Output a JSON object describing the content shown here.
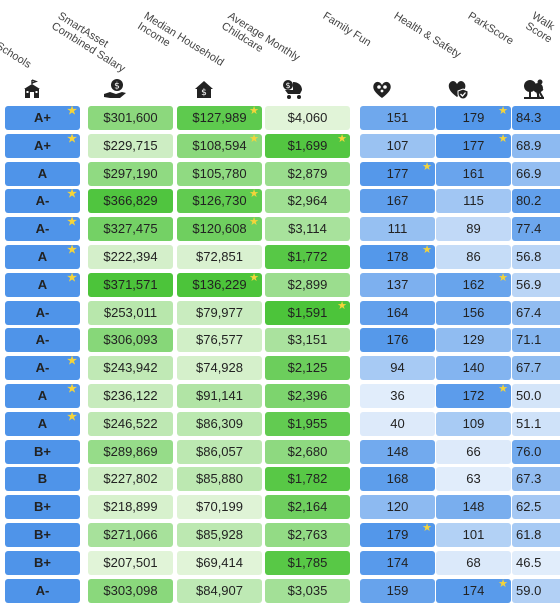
{
  "chart_data": {
    "type": "table",
    "columns": [
      {
        "key": "schools",
        "label": [
          "Schools"
        ],
        "icon": "school-icon"
      },
      {
        "key": "salary",
        "label": [
          "SmartAsset",
          "Combined Salary"
        ],
        "icon": "money-hand-icon"
      },
      {
        "key": "income",
        "label": [
          "Median Household",
          "Income"
        ],
        "icon": "house-dollar-icon"
      },
      {
        "key": "childcare",
        "label": [
          "Average Monthly",
          "Childcare"
        ],
        "icon": "stroller-dollar-icon"
      },
      {
        "key": "fun",
        "label": [
          "Family Fun"
        ],
        "icon": "family-icon"
      },
      {
        "key": "health",
        "label": [
          "Health & Safety"
        ],
        "icon": "heart-shield-icon"
      },
      {
        "key": "parks",
        "label": [
          "ParkScore"
        ],
        "icon": "park-icon"
      },
      {
        "key": "walk",
        "label": [
          "Walk",
          "Score"
        ],
        "icon": "walk-icon"
      }
    ],
    "rows": [
      {
        "schools": "A+",
        "salary": "$301,600",
        "income": "$127,989",
        "childcare": "$4,060",
        "fun": "151",
        "health": "179",
        "parks": "84.3"
      },
      {
        "schools": "A+",
        "salary": "$229,715",
        "income": "$108,594",
        "childcare": "$1,699",
        "fun": "107",
        "health": "177",
        "parks": "68.9"
      },
      {
        "schools": "A",
        "salary": "$297,190",
        "income": "$105,780",
        "childcare": "$2,879",
        "fun": "177",
        "health": "161",
        "parks": "66.9"
      },
      {
        "schools": "A-",
        "salary": "$366,829",
        "income": "$126,730",
        "childcare": "$2,964",
        "fun": "167",
        "health": "115",
        "parks": "80.2"
      },
      {
        "schools": "A-",
        "salary": "$327,475",
        "income": "$120,608",
        "childcare": "$3,114",
        "fun": "111",
        "health": "89",
        "parks": "77.4"
      },
      {
        "schools": "A",
        "salary": "$222,394",
        "income": "$72,851",
        "childcare": "$1,772",
        "fun": "178",
        "health": "86",
        "parks": "56.8"
      },
      {
        "schools": "A",
        "salary": "$371,571",
        "income": "$136,229",
        "childcare": "$2,899",
        "fun": "137",
        "health": "162",
        "parks": "56.9"
      },
      {
        "schools": "A-",
        "salary": "$253,011",
        "income": "$79,977",
        "childcare": "$1,591",
        "fun": "164",
        "health": "156",
        "parks": "67.4"
      },
      {
        "schools": "A-",
        "salary": "$306,093",
        "income": "$76,577",
        "childcare": "$3,151",
        "fun": "176",
        "health": "129",
        "parks": "71.1"
      },
      {
        "schools": "A-",
        "salary": "$243,942",
        "income": "$74,928",
        "childcare": "$2,125",
        "fun": "94",
        "health": "140",
        "parks": "67.7"
      },
      {
        "schools": "A",
        "salary": "$236,122",
        "income": "$91,141",
        "childcare": "$2,396",
        "fun": "36",
        "health": "172",
        "parks": "50.0"
      },
      {
        "schools": "A",
        "salary": "$246,522",
        "income": "$86,309",
        "childcare": "$1,955",
        "fun": "40",
        "health": "109",
        "parks": "51.1"
      },
      {
        "schools": "B+",
        "salary": "$289,869",
        "income": "$86,057",
        "childcare": "$2,680",
        "fun": "148",
        "health": "66",
        "parks": "76.0"
      },
      {
        "schools": "B",
        "salary": "$227,802",
        "income": "$85,880",
        "childcare": "$1,782",
        "fun": "168",
        "health": "63",
        "parks": "67.3"
      },
      {
        "schools": "B+",
        "salary": "$218,899",
        "income": "$70,199",
        "childcare": "$2,164",
        "fun": "120",
        "health": "148",
        "parks": "62.5"
      },
      {
        "schools": "B+",
        "salary": "$271,066",
        "income": "$85,928",
        "childcare": "$2,763",
        "fun": "179",
        "health": "101",
        "parks": "61.8"
      },
      {
        "schools": "B+",
        "salary": "$207,501",
        "income": "$69,414",
        "childcare": "$1,785",
        "fun": "174",
        "health": "68",
        "parks": "46.5"
      },
      {
        "schools": "A-",
        "salary": "$303,098",
        "income": "$84,907",
        "childcare": "$3,035",
        "fun": "159",
        "health": "174",
        "parks": "59.0"
      }
    ],
    "stars": {
      "schools": [
        0,
        1,
        3,
        4,
        5,
        6,
        9,
        10,
        11
      ],
      "income": [
        0,
        1,
        3,
        4,
        6
      ],
      "childcare": [
        1,
        7
      ],
      "fun": [
        2,
        5,
        15
      ],
      "health": [
        0,
        1,
        6,
        10,
        17
      ],
      "parks": [],
      "salary": []
    },
    "colors": {
      "green_light": "#eef8e6",
      "green_dark": "#4cc43a",
      "blue_light": "#edf4fc",
      "blue_dark": "#5397ea",
      "star": "#f5d43a",
      "schools_blue": "#4f94e9"
    }
  }
}
